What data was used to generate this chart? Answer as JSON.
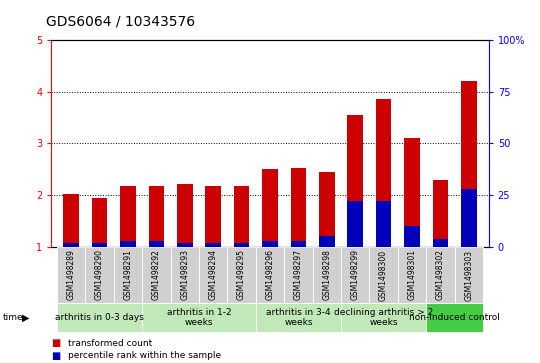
{
  "title": "GDS6064 / 10343576",
  "samples": [
    "GSM1498289",
    "GSM1498290",
    "GSM1498291",
    "GSM1498292",
    "GSM1498293",
    "GSM1498294",
    "GSM1498295",
    "GSM1498296",
    "GSM1498297",
    "GSM1498298",
    "GSM1498299",
    "GSM1498300",
    "GSM1498301",
    "GSM1498302",
    "GSM1498303"
  ],
  "transformed_count": [
    2.03,
    1.95,
    2.18,
    2.18,
    2.22,
    2.18,
    2.18,
    2.5,
    2.52,
    2.45,
    3.55,
    3.85,
    3.1,
    2.3,
    4.2
  ],
  "percentile_rank": [
    2,
    2,
    3,
    3,
    2,
    2,
    2,
    3,
    3,
    5,
    22,
    22,
    10,
    4,
    28
  ],
  "ylim_left": [
    1,
    5
  ],
  "ylim_right": [
    0,
    100
  ],
  "yticks_left": [
    1,
    2,
    3,
    4,
    5
  ],
  "yticks_right": [
    0,
    25,
    50,
    75,
    100
  ],
  "groups": [
    {
      "label": "arthritis in 0-3 days",
      "start": 0,
      "end": 3,
      "color": "#c0e8b8"
    },
    {
      "label": "arthritis in 1-2\nweeks",
      "start": 3,
      "end": 7,
      "color": "#c0e8b8"
    },
    {
      "label": "arthritis in 3-4\nweeks",
      "start": 7,
      "end": 10,
      "color": "#c0e8b8"
    },
    {
      "label": "declining arthritis > 2\nweeks",
      "start": 10,
      "end": 13,
      "color": "#c0e8b8"
    },
    {
      "label": "non-induced control",
      "start": 13,
      "end": 15,
      "color": "#44cc44"
    }
  ],
  "bar_color_red": "#cc0000",
  "bar_color_blue": "#0000bb",
  "bar_width": 0.55,
  "legend_red": "transformed count",
  "legend_blue": "percentile rank within the sample",
  "title_fontsize": 10,
  "tick_fontsize": 7,
  "sample_fontsize": 5.5,
  "group_label_fontsize": 6.5,
  "time_label": "time",
  "bg_color": "#ffffff"
}
